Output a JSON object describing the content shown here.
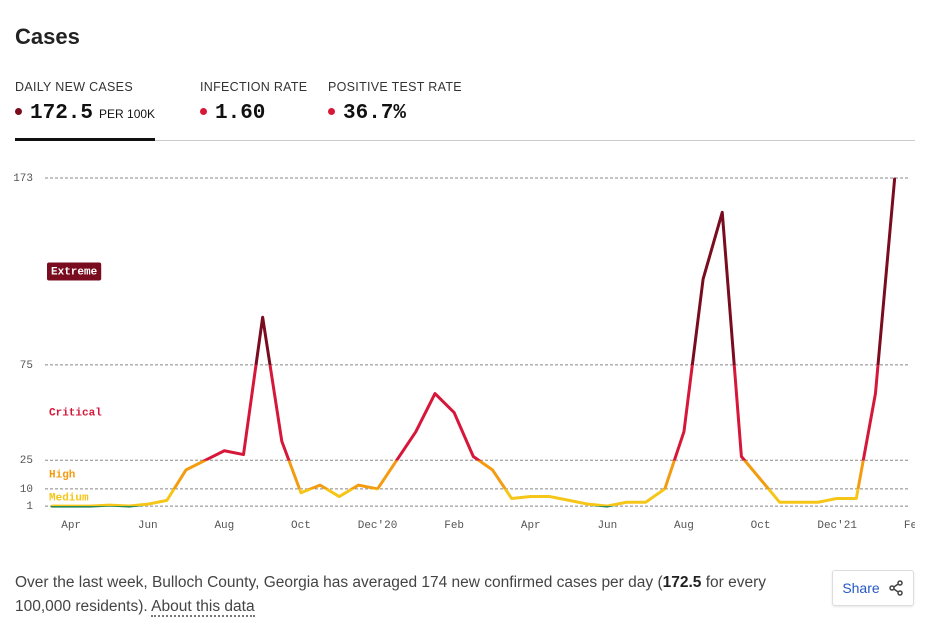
{
  "header": {
    "title": "Cases"
  },
  "tabs": [
    {
      "label": "DAILY NEW CASES",
      "value": "172.5",
      "unit": "PER 100K",
      "dot_color": "#7a0c1f",
      "active": true
    },
    {
      "label": "INFECTION RATE",
      "value": "1.60",
      "dot_color": "#d6173a",
      "active": false
    },
    {
      "label": "POSITIVE TEST RATE",
      "value": "36.7%",
      "dot_color": "#d6173a",
      "active": false
    }
  ],
  "chart_data": {
    "type": "line",
    "categories": [
      null,
      "Apr",
      null,
      null,
      null,
      "Jun",
      null,
      null,
      null,
      "Aug",
      null,
      null,
      null,
      "Oct",
      null,
      null,
      null,
      "Dec'20",
      null,
      null,
      null,
      "Feb",
      null,
      null,
      null,
      "Apr",
      null,
      null,
      null,
      "Jun",
      null,
      null,
      null,
      "Aug",
      null,
      null,
      null,
      "Oct",
      null,
      null,
      null,
      "Dec'21",
      null,
      null,
      null,
      "Feb"
    ],
    "values": [
      1,
      1,
      1,
      1.5,
      1,
      2,
      4,
      20,
      25,
      30,
      28,
      100,
      35,
      8,
      12,
      6,
      12,
      10,
      25,
      40,
      60,
      50,
      27,
      20,
      5,
      6,
      6,
      4,
      2,
      1,
      3,
      3,
      10,
      40,
      120,
      155,
      27,
      15,
      3,
      3,
      3,
      5,
      5,
      60,
      172.5,
      null
    ],
    "ylim": [
      0,
      173
    ],
    "yticks": [
      1,
      10,
      25,
      75,
      173
    ],
    "grid": true,
    "base_color": "#2e8b57",
    "levels": [
      {
        "label": "Medium",
        "from": 1,
        "color": "#f5c518"
      },
      {
        "label": "High",
        "from": 10,
        "color": "#f39c12"
      },
      {
        "label": "Critical",
        "from": 25,
        "color": "#d6173a"
      },
      {
        "label": "Extreme",
        "from": 75,
        "color": "#7a0c1f"
      }
    ]
  },
  "footer": {
    "text_before": "Over the last week, Bulloch County, Georgia has averaged 174 new confirmed cases per day (",
    "bold": "172.5",
    "text_after": " for every 100,000 residents). ",
    "link": "About this data"
  },
  "share": {
    "label": "Share"
  }
}
